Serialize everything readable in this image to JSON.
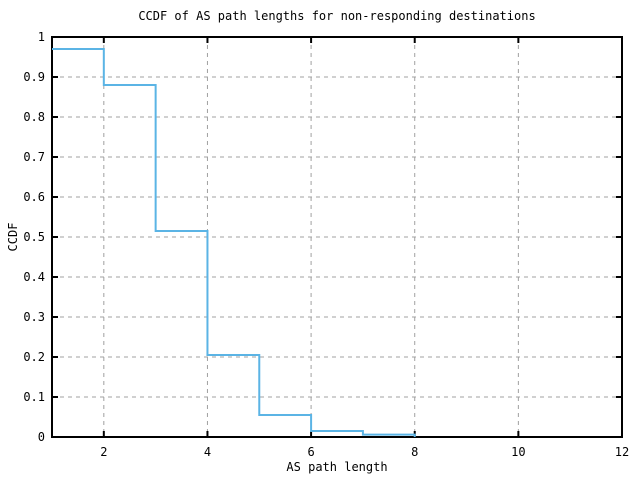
{
  "chart_data": {
    "type": "line",
    "step_mode": "post",
    "title": "CCDF of AS path lengths for non-responding destinations",
    "xlabel": "AS path length",
    "ylabel": "CCDF",
    "xlim": [
      1,
      12
    ],
    "ylim": [
      0,
      1
    ],
    "x_tick_values": [
      2,
      4,
      6,
      8,
      10,
      12
    ],
    "x_tick_labels": [
      "2",
      "4",
      "6",
      "8",
      "10",
      "12"
    ],
    "y_tick_values": [
      0,
      0.1,
      0.2,
      0.3,
      0.4,
      0.5,
      0.6,
      0.7,
      0.8,
      0.9,
      1
    ],
    "y_tick_labels": [
      "0",
      "0.1",
      "0.2",
      "0.3",
      "0.4",
      "0.5",
      "0.6",
      "0.7",
      "0.8",
      "0.9",
      "1"
    ],
    "grid": true,
    "legend": "none",
    "series": [
      {
        "name": "CCDF of AS path length",
        "color": "#5bb4e5",
        "x": [
          1,
          2,
          3,
          4,
          5,
          6,
          7,
          8
        ],
        "y": [
          0.97,
          0.88,
          0.515,
          0.205,
          0.055,
          0.015,
          0.006,
          0
        ]
      }
    ],
    "colors": {
      "axis": "#000000",
      "grid": "#a0a0a0",
      "background": "#ffffff",
      "line": "#5bb4e5"
    }
  }
}
